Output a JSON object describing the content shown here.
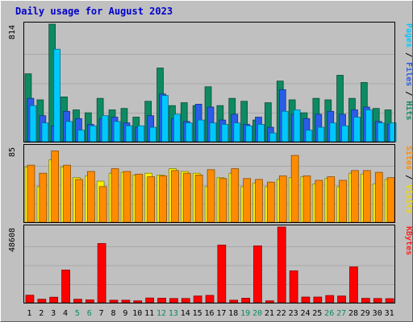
{
  "chart_data": {
    "type": "bar",
    "title": "Daily usage for August 2023",
    "categories": [
      "1",
      "2",
      "3",
      "4",
      "5",
      "6",
      "7",
      "8",
      "9",
      "10",
      "11",
      "12",
      "13",
      "14",
      "15",
      "16",
      "17",
      "18",
      "19",
      "20",
      "21",
      "22",
      "23",
      "24",
      "25",
      "26",
      "27",
      "28",
      "29",
      "30",
      "31"
    ],
    "weekend_days": [
      "5",
      "6",
      "12",
      "13",
      "19",
      "20",
      "26",
      "27"
    ],
    "panels": [
      {
        "id": "top",
        "max_label": "814",
        "ymax": 814,
        "ylabel_parts": [
          {
            "text": "Pages",
            "color": "#00c8ff"
          },
          {
            "text": " / ",
            "color": "#000000"
          },
          {
            "text": "Files",
            "color": "#2a5ce8"
          },
          {
            "text": " / ",
            "color": "#000000"
          },
          {
            "text": "Hits",
            "color": "#0e8a63"
          }
        ],
        "series": [
          {
            "name": "Hits",
            "color": "#0e8a63",
            "values": [
              470,
              290,
              814,
              310,
              220,
              200,
              300,
              220,
              230,
              170,
              280,
              510,
              250,
              270,
              250,
              380,
              250,
              300,
              280,
              150,
              270,
              420,
              290,
              200,
              300,
              290,
              460,
              300,
              410,
              230,
              220
            ]
          },
          {
            "name": "Files",
            "color": "#2a5ce8",
            "values": [
              300,
              180,
              110,
              210,
              160,
              120,
              160,
              170,
              130,
              100,
              180,
              330,
              160,
              140,
              260,
              240,
              150,
              190,
              120,
              170,
              100,
              360,
              190,
              160,
              190,
              210,
              190,
              220,
              240,
              140,
              120
            ]
          },
          {
            "name": "Pages",
            "color": "#00c8ff",
            "values": [
              250,
              130,
              640,
              140,
              80,
              110,
              180,
              140,
              110,
              110,
              100,
              320,
              190,
              130,
              150,
              130,
              120,
              130,
              110,
              120,
              60,
              210,
              220,
              80,
              100,
              130,
              110,
              170,
              220,
              130,
              130
            ]
          }
        ]
      },
      {
        "id": "middle",
        "max_label": "85",
        "ymax": 85,
        "ylabel_parts": [
          {
            "text": "Sites",
            "color": "#ff8c00"
          },
          {
            "text": " / ",
            "color": "#000000"
          },
          {
            "text": "Visits",
            "color": "#f0d800"
          }
        ],
        "series": [
          {
            "name": "Visits",
            "color": "#f8f000",
            "values": [
              62,
              40,
              70,
              62,
              50,
              52,
              46,
              55,
              56,
              53,
              55,
              53,
              60,
              57,
              55,
              40,
              50,
              55,
              40,
              44,
              40,
              48,
              50,
              51,
              43,
              49,
              40,
              55,
              54,
              43,
              48
            ]
          },
          {
            "name": "Sites",
            "color": "#ff8c00",
            "values": [
              64,
              55,
              80,
              64,
              48,
              57,
              40,
              60,
              57,
              54,
              51,
              52,
              58,
              55,
              53,
              59,
              49,
              60,
              49,
              48,
              45,
              52,
              75,
              52,
              47,
              51,
              47,
              58,
              58,
              56,
              50
            ]
          }
        ]
      },
      {
        "id": "bottom",
        "max_label": "48608",
        "ymax": 48608,
        "ylabel_parts": [
          {
            "text": "KBytes",
            "color": "#ff2020"
          }
        ],
        "series": [
          {
            "name": "KBytes",
            "color": "#ff0000",
            "values": [
              4800,
              2200,
              3500,
              21000,
              2200,
              1800,
              38000,
              1600,
              1600,
              1200,
              3000,
              2900,
              2700,
              2700,
              4300,
              4700,
              37000,
              1600,
              2900,
              36500,
              1200,
              48608,
              20500,
              3600,
              3600,
              4600,
              4300,
              23000,
              2800,
              2700,
              2600
            ]
          }
        ]
      }
    ]
  }
}
